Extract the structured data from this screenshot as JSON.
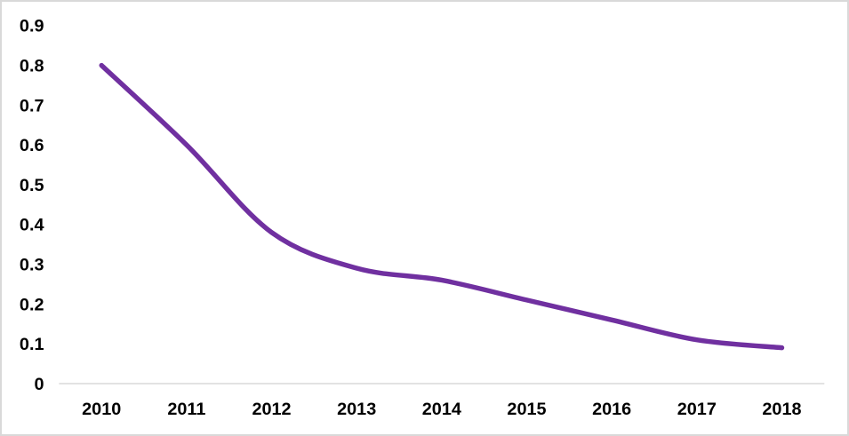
{
  "chart": {
    "title": "",
    "border_color": "#D9D9D9",
    "background": "#FFFFFF"
  },
  "chart_data": {
    "type": "line",
    "smooth": true,
    "title": "",
    "xlabel": "",
    "ylabel": "",
    "categories": [
      "2010",
      "2011",
      "2012",
      "2013",
      "2014",
      "2015",
      "2016",
      "2017",
      "2018"
    ],
    "values": [
      0.8,
      0.6,
      0.38,
      0.29,
      0.26,
      0.21,
      0.16,
      0.11,
      0.09
    ],
    "ylim": [
      0,
      0.9
    ],
    "y_ticks": [
      "0.9",
      "0.8",
      "0.7",
      "0.6",
      "0.5",
      "0.4",
      "0.3",
      "0.2",
      "0.1",
      "0"
    ],
    "grid": false,
    "legend": false,
    "legend_position": "none",
    "line_color": "#7030A0",
    "axis_color": "#D9D9D9",
    "text_color": "#000000"
  }
}
